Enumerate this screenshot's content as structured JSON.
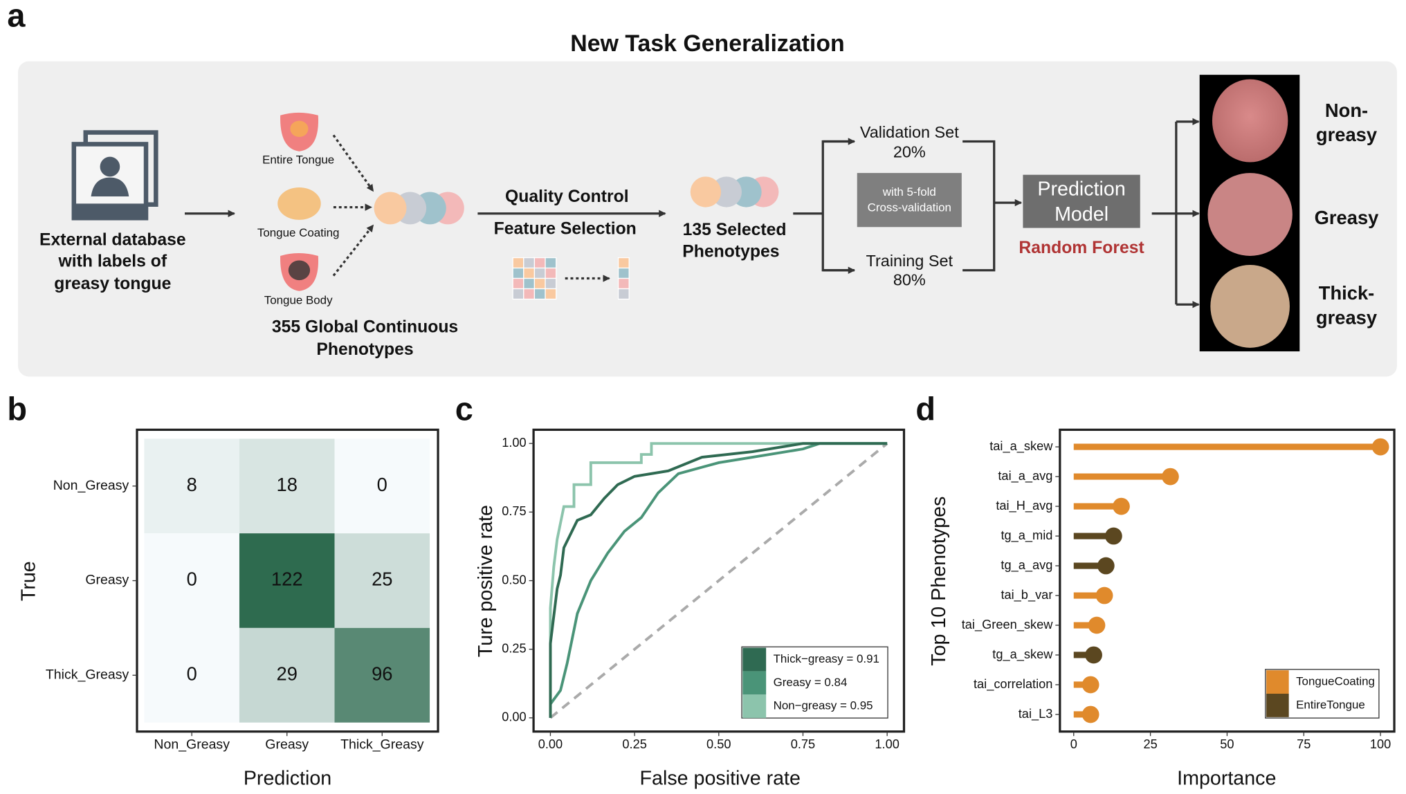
{
  "panel_labels": [
    "a",
    "b",
    "c",
    "d"
  ],
  "diagram": {
    "title": "New Task Generalization",
    "source": [
      "External database",
      "with labels of",
      "greasy tongue"
    ],
    "inputs": [
      "Entire Tongue",
      "Tongue Coating",
      "Tongue Body"
    ],
    "global_phenotypes": [
      "355 Global Continuous",
      "Phenotypes"
    ],
    "processing": [
      "Quality Control",
      "Feature Selection"
    ],
    "selected": [
      "135 Selected",
      "Phenotypes"
    ],
    "validation": [
      "Validation Set",
      "20%"
    ],
    "cv": [
      "with 5-fold",
      "Cross-validation"
    ],
    "training": [
      "Training Set",
      "80%"
    ],
    "model": [
      "Prediction",
      "Model"
    ],
    "model_type": "Random Forest",
    "outputs": [
      [
        "Non-",
        "greasy"
      ],
      [
        "Greasy"
      ],
      [
        "Thick-",
        "greasy"
      ]
    ]
  },
  "chart_data": [
    {
      "type": "heatmap",
      "xlabel": "Prediction",
      "ylabel": "True",
      "x_categories": [
        "Non_Greasy",
        "Greasy",
        "Thick_Greasy"
      ],
      "y_categories": [
        "Non_Greasy",
        "Greasy",
        "Thick_Greasy"
      ],
      "values": [
        [
          8,
          18,
          0
        ],
        [
          0,
          122,
          25
        ],
        [
          0,
          29,
          96
        ]
      ],
      "colors": [
        "#f6fafc",
        "#2e6b4f"
      ]
    },
    {
      "type": "line",
      "xlabel": "False positive rate",
      "ylabel": "Ture positive rate",
      "xlim": [
        -0.05,
        1.05
      ],
      "ylim": [
        -0.05,
        1.05
      ],
      "xticks": [
        {
          "value": 0,
          "label": "0.00"
        },
        {
          "value": 0.25,
          "label": "0.25"
        },
        {
          "value": 0.5,
          "label": "0.50"
        },
        {
          "value": 0.75,
          "label": "0.75"
        },
        {
          "value": 1,
          "label": "1.00"
        }
      ],
      "yticks": [
        {
          "value": 0,
          "label": "0.00"
        },
        {
          "value": 0.25,
          "label": "0.25"
        },
        {
          "value": 0.5,
          "label": "0.50"
        },
        {
          "value": 0.75,
          "label": "0.75"
        },
        {
          "value": 1,
          "label": "1.00"
        }
      ],
      "legend": "lower right",
      "series": [
        {
          "name": "Thick−greasy = 0.91",
          "color": "#2f6a52",
          "x": [
            0,
            0,
            0.02,
            0.03,
            0.04,
            0.06,
            0.08,
            0.12,
            0.16,
            0.2,
            0.25,
            0.35,
            0.45,
            0.6,
            0.75,
            1
          ],
          "values": [
            0,
            0.27,
            0.47,
            0.52,
            0.62,
            0.67,
            0.72,
            0.74,
            0.8,
            0.85,
            0.88,
            0.9,
            0.95,
            0.97,
            1,
            1
          ]
        },
        {
          "name": "Greasy = 0.84",
          "color": "#4a9478",
          "x": [
            0,
            0,
            0.03,
            0.05,
            0.08,
            0.12,
            0.17,
            0.22,
            0.27,
            0.32,
            0.38,
            0.5,
            0.6,
            0.75,
            0.8,
            1
          ],
          "values": [
            0,
            0.05,
            0.1,
            0.2,
            0.38,
            0.5,
            0.6,
            0.68,
            0.73,
            0.82,
            0.89,
            0.93,
            0.95,
            0.98,
            1,
            1
          ]
        },
        {
          "name": "Non−greasy = 0.95",
          "color": "#8cc4ac",
          "x": [
            0,
            0,
            0.01,
            0.02,
            0.04,
            0.07,
            0.07,
            0.12,
            0.12,
            0.27,
            0.27,
            0.3,
            0.3,
            1
          ],
          "values": [
            0,
            0.4,
            0.55,
            0.65,
            0.77,
            0.77,
            0.85,
            0.85,
            0.93,
            0.93,
            0.96,
            0.96,
            1,
            1
          ]
        }
      ]
    },
    {
      "type": "lollipop",
      "xlabel": "Importance",
      "ylabel": "Top 10 Phenotypes",
      "categories": [
        "tai_a_skew",
        "tai_a_avg",
        "tai_H_avg",
        "tg_a_mid",
        "tg_a_avg",
        "tai_b_var",
        "tai_Green_skew",
        "tg_a_skew",
        "tai_correlation",
        "tai_L3"
      ],
      "xlim": [
        -4.5,
        104.5
      ],
      "xticks": [
        0,
        25,
        50,
        75,
        100
      ],
      "legend": "lower right",
      "series": [
        {
          "name": "TongueCoating",
          "color": "#e08a2c",
          "values": [
            100,
            31.5,
            15.5,
            null,
            null,
            10,
            7.5,
            null,
            5.5,
            5.5
          ]
        },
        {
          "name": "EntireTongue",
          "color": "#5b4720",
          "values": [
            null,
            null,
            null,
            13,
            10.5,
            null,
            null,
            6.5,
            null,
            null
          ]
        }
      ]
    }
  ]
}
